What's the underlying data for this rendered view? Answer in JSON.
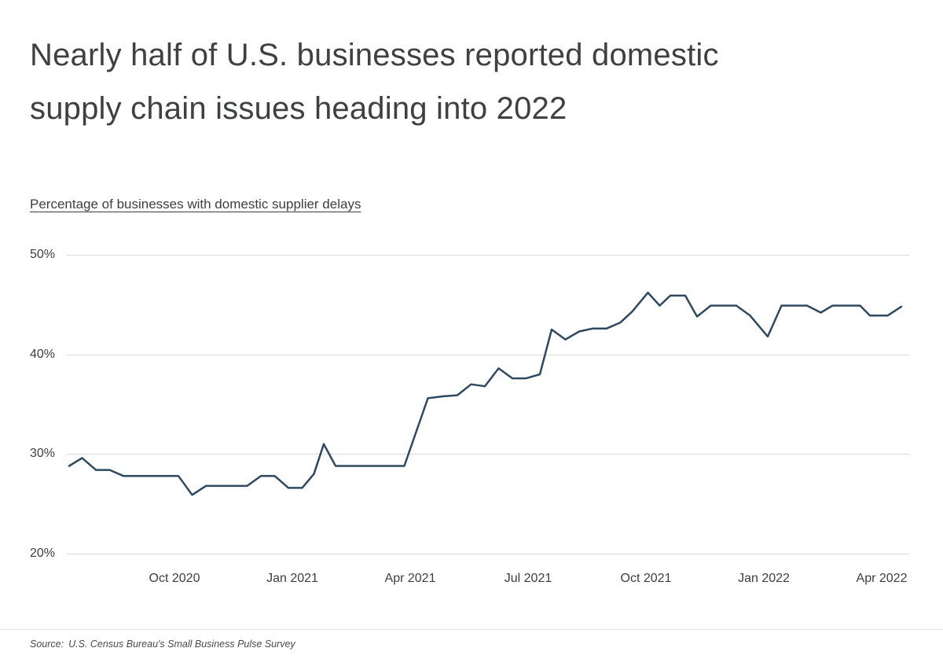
{
  "page": {
    "title_lines": [
      "Nearly half of U.S. businesses reported domestic",
      "supply chain issues heading into 2022"
    ],
    "subtitle": "Percentage of businesses with domestic supplier delays",
    "source_label": "Source:",
    "source_text": "U.S. Census Bureau's Small Business Pulse Survey"
  },
  "chart_data": {
    "type": "line",
    "title": "Nearly half of U.S. businesses reported domestic supply chain issues heading into 2022",
    "subtitle": "Percentage of businesses with domestic supplier delays",
    "xlabel": "",
    "ylabel": "Percentage of businesses with domestic supplier delays",
    "ylim": [
      20,
      50
    ],
    "grid": "horizontal",
    "legend": "none",
    "line_color": "#2e4960",
    "y_ticks": [
      "50%",
      "40%",
      "30%",
      "20%"
    ],
    "y_tick_values": [
      50,
      40,
      30,
      20
    ],
    "x_ticks": [
      {
        "label": "Oct 2020",
        "m": 0
      },
      {
        "label": "Jan 2021",
        "m": 3
      },
      {
        "label": "Apr 2021",
        "m": 6
      },
      {
        "label": "Jul 2021",
        "m": 9
      },
      {
        "label": "Oct 2021",
        "m": 12
      },
      {
        "label": "Jan 2022",
        "m": 15
      },
      {
        "label": "Apr 2022",
        "m": 18
      }
    ],
    "x_unit": "months relative to Oct 2020",
    "series": [
      {
        "name": "Percentage of businesses with domestic supplier delays",
        "color": "#2e4960",
        "points": [
          [
            -2.68,
            28.8
          ],
          [
            -2.35,
            29.6
          ],
          [
            -2.0,
            28.4
          ],
          [
            -1.65,
            28.4
          ],
          [
            -1.3,
            27.8
          ],
          [
            -0.95,
            27.8
          ],
          [
            -0.6,
            27.8
          ],
          [
            -0.25,
            27.8
          ],
          [
            0.1,
            27.8
          ],
          [
            0.45,
            25.9
          ],
          [
            0.8,
            26.8
          ],
          [
            1.15,
            26.8
          ],
          [
            1.5,
            26.8
          ],
          [
            1.85,
            26.8
          ],
          [
            2.2,
            27.8
          ],
          [
            2.55,
            27.8
          ],
          [
            2.9,
            26.6
          ],
          [
            3.25,
            26.6
          ],
          [
            3.55,
            28.0
          ],
          [
            3.8,
            31.0
          ],
          [
            4.1,
            28.8
          ],
          [
            4.45,
            28.8
          ],
          [
            4.8,
            28.8
          ],
          [
            5.15,
            28.8
          ],
          [
            5.5,
            28.8
          ],
          [
            5.85,
            28.8
          ],
          [
            6.45,
            35.6
          ],
          [
            6.85,
            35.8
          ],
          [
            7.2,
            35.9
          ],
          [
            7.55,
            37.0
          ],
          [
            7.9,
            36.8
          ],
          [
            8.25,
            38.6
          ],
          [
            8.6,
            37.6
          ],
          [
            8.95,
            37.6
          ],
          [
            9.3,
            38.0
          ],
          [
            9.6,
            42.5
          ],
          [
            9.95,
            41.5
          ],
          [
            10.3,
            42.3
          ],
          [
            10.65,
            42.6
          ],
          [
            11.0,
            42.6
          ],
          [
            11.35,
            43.2
          ],
          [
            11.65,
            44.3
          ],
          [
            12.05,
            46.2
          ],
          [
            12.35,
            44.9
          ],
          [
            12.62,
            45.9
          ],
          [
            13.0,
            45.9
          ],
          [
            13.3,
            43.8
          ],
          [
            13.65,
            44.9
          ],
          [
            14.3,
            44.9
          ],
          [
            14.65,
            43.9
          ],
          [
            15.1,
            41.8
          ],
          [
            15.45,
            44.9
          ],
          [
            16.1,
            44.9
          ],
          [
            16.45,
            44.2
          ],
          [
            16.75,
            44.9
          ],
          [
            17.45,
            44.9
          ],
          [
            17.7,
            43.9
          ],
          [
            18.15,
            43.9
          ],
          [
            18.5,
            44.8
          ]
        ]
      }
    ]
  }
}
